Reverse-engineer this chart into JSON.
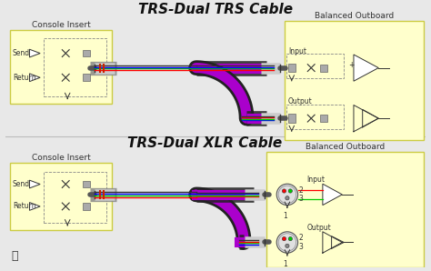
{
  "bg_color": "#e8e8e8",
  "yellow_fill": "#ffffcc",
  "yellow_border": "#cccc44",
  "title1": "TRS-Dual TRS Cable",
  "title2": "TRS-Dual XLR Cable",
  "label_console": "Console Insert",
  "label_balanced": "Balanced Outboard",
  "label_send": "Send",
  "label_return": "Return",
  "label_input": "Input",
  "label_output": "Output",
  "purple": "#aa00cc",
  "wire_colors": [
    "#ff0000",
    "#00cc00",
    "#0000ff",
    "#444444"
  ],
  "connector_gray": "#bbbbbb",
  "connector_dark": "#555555",
  "font_size_title": 11,
  "font_size_label": 6.5,
  "font_size_small": 5.5
}
